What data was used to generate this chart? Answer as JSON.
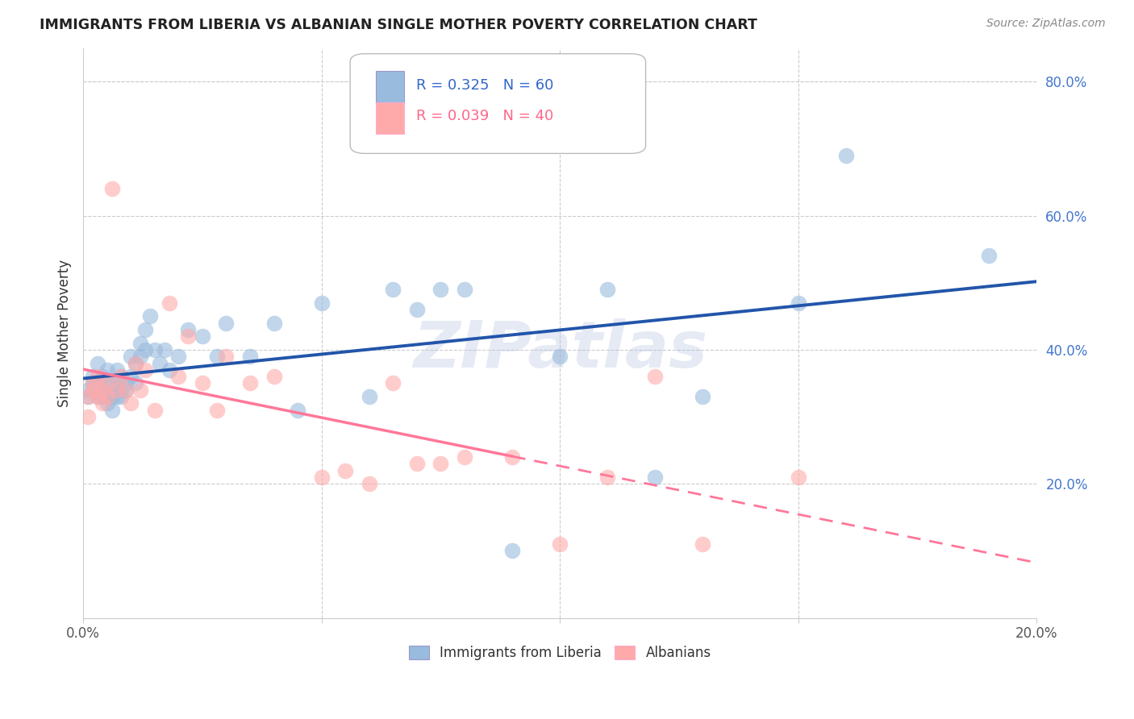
{
  "title": "IMMIGRANTS FROM LIBERIA VS ALBANIAN SINGLE MOTHER POVERTY CORRELATION CHART",
  "source": "Source: ZipAtlas.com",
  "ylabel": "Single Mother Poverty",
  "xlim": [
    0.0,
    0.2
  ],
  "ylim": [
    0.0,
    0.85
  ],
  "xticks": [
    0.0,
    0.05,
    0.1,
    0.15,
    0.2
  ],
  "xtick_labels": [
    "0.0%",
    "",
    "",
    "",
    "20.0%"
  ],
  "yticks_right": [
    0.2,
    0.4,
    0.6,
    0.8
  ],
  "ytick_labels_right": [
    "20.0%",
    "40.0%",
    "60.0%",
    "80.0%"
  ],
  "legend_blue_r": "0.325",
  "legend_blue_n": "60",
  "legend_pink_r": "0.039",
  "legend_pink_n": "40",
  "legend_label_blue": "Immigrants from Liberia",
  "legend_label_pink": "Albanians",
  "blue_color": "#99BBDD",
  "pink_color": "#FFAAAA",
  "blue_line_color": "#2255AA",
  "pink_line_color": "#FF7799",
  "watermark": "ZIPatlas",
  "blue_x": [
    0.001,
    0.001,
    0.002,
    0.002,
    0.003,
    0.003,
    0.003,
    0.004,
    0.004,
    0.004,
    0.005,
    0.005,
    0.005,
    0.005,
    0.006,
    0.006,
    0.006,
    0.007,
    0.007,
    0.007,
    0.008,
    0.008,
    0.008,
    0.009,
    0.009,
    0.01,
    0.01,
    0.011,
    0.011,
    0.012,
    0.012,
    0.013,
    0.013,
    0.014,
    0.015,
    0.016,
    0.017,
    0.018,
    0.02,
    0.022,
    0.025,
    0.028,
    0.03,
    0.035,
    0.04,
    0.045,
    0.05,
    0.06,
    0.065,
    0.07,
    0.075,
    0.08,
    0.09,
    0.1,
    0.11,
    0.12,
    0.13,
    0.15,
    0.16,
    0.19
  ],
  "blue_y": [
    0.33,
    0.34,
    0.35,
    0.36,
    0.33,
    0.38,
    0.35,
    0.34,
    0.33,
    0.36,
    0.32,
    0.35,
    0.37,
    0.33,
    0.35,
    0.33,
    0.31,
    0.37,
    0.35,
    0.33,
    0.34,
    0.36,
    0.33,
    0.35,
    0.34,
    0.39,
    0.36,
    0.38,
    0.35,
    0.41,
    0.39,
    0.43,
    0.4,
    0.45,
    0.4,
    0.38,
    0.4,
    0.37,
    0.39,
    0.43,
    0.42,
    0.39,
    0.44,
    0.39,
    0.44,
    0.31,
    0.47,
    0.33,
    0.49,
    0.46,
    0.49,
    0.49,
    0.1,
    0.39,
    0.49,
    0.21,
    0.33,
    0.47,
    0.69,
    0.54
  ],
  "pink_x": [
    0.001,
    0.001,
    0.002,
    0.002,
    0.003,
    0.003,
    0.004,
    0.004,
    0.005,
    0.005,
    0.006,
    0.007,
    0.008,
    0.009,
    0.01,
    0.011,
    0.012,
    0.013,
    0.015,
    0.018,
    0.02,
    0.022,
    0.025,
    0.028,
    0.03,
    0.035,
    0.04,
    0.05,
    0.055,
    0.06,
    0.065,
    0.07,
    0.075,
    0.08,
    0.09,
    0.1,
    0.11,
    0.12,
    0.13,
    0.15
  ],
  "pink_y": [
    0.33,
    0.3,
    0.34,
    0.35,
    0.36,
    0.33,
    0.32,
    0.34,
    0.33,
    0.35,
    0.64,
    0.34,
    0.36,
    0.34,
    0.32,
    0.38,
    0.34,
    0.37,
    0.31,
    0.47,
    0.36,
    0.42,
    0.35,
    0.31,
    0.39,
    0.35,
    0.36,
    0.21,
    0.22,
    0.2,
    0.35,
    0.23,
    0.23,
    0.24,
    0.24,
    0.11,
    0.21,
    0.36,
    0.11,
    0.21
  ]
}
